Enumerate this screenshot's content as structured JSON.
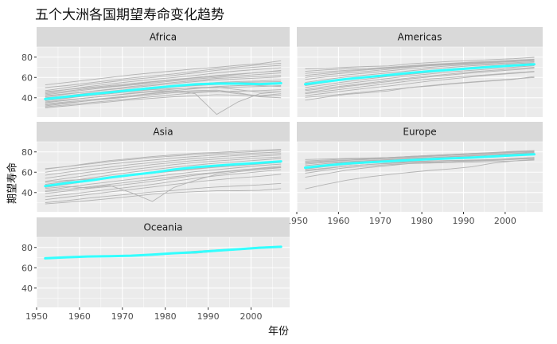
{
  "chart_data": {
    "type": "line",
    "title": "五个大洲各国期望寿命变化趋势",
    "xlabel": "年份",
    "ylabel": "期望寿命",
    "xlim": [
      1950,
      2009
    ],
    "ylim": [
      21,
      90
    ],
    "x_ticks": [
      1950,
      1960,
      1970,
      1980,
      1990,
      2000
    ],
    "y_ticks": [
      40,
      60,
      80
    ],
    "series_color_countries": "#b3b3b3",
    "series_color_trend": "#33ffff",
    "panel_background": "#ebebeb",
    "strip_background": "#d9d9d9",
    "gridline_color": "#ffffff",
    "x": [
      1952,
      1957,
      1962,
      1967,
      1972,
      1977,
      1982,
      1987,
      1992,
      1997,
      2002,
      2007
    ],
    "panels": [
      {
        "continent": "Africa",
        "trend": [
          38.7,
          41.0,
          43.3,
          45.3,
          47.4,
          49.6,
          51.6,
          53.2,
          54.0,
          53.9,
          53.5,
          54.3
        ],
        "country_lines": [
          [
            30.0,
            32.0,
            34.0,
            36.0,
            38.0,
            39.5,
            41.0,
            42.0,
            43.0,
            42.5,
            41.5,
            42.5
          ],
          [
            33.0,
            35.0,
            37.0,
            39.0,
            41.0,
            43.0,
            45.0,
            46.0,
            46.5,
            44.0,
            42.0,
            44.0
          ],
          [
            35.0,
            37.5,
            40.0,
            42.0,
            44.5,
            46.5,
            48.5,
            50.0,
            50.5,
            48.0,
            45.5,
            46.0
          ],
          [
            37.0,
            39.5,
            42.0,
            44.0,
            46.5,
            48.5,
            50.5,
            52.0,
            53.0,
            53.5,
            52.0,
            51.0
          ],
          [
            39.0,
            41.0,
            43.0,
            45.0,
            47.0,
            49.5,
            51.5,
            53.5,
            55.0,
            56.0,
            56.5,
            57.5
          ],
          [
            41.0,
            43.5,
            46.0,
            48.0,
            50.0,
            52.0,
            54.0,
            56.0,
            57.5,
            58.5,
            59.5,
            60.5
          ],
          [
            43.0,
            45.5,
            48.0,
            50.5,
            52.5,
            54.5,
            56.5,
            58.5,
            60.0,
            61.5,
            63.0,
            64.5
          ],
          [
            45.0,
            48.0,
            51.0,
            53.5,
            56.0,
            58.0,
            60.0,
            62.0,
            64.5,
            66.5,
            68.0,
            69.5
          ],
          [
            47.0,
            50.0,
            53.0,
            55.5,
            58.0,
            60.0,
            62.0,
            64.5,
            67.0,
            69.0,
            70.5,
            72.0
          ],
          [
            50.0,
            52.0,
            54.5,
            57.0,
            59.5,
            61.5,
            63.5,
            66.0,
            68.5,
            70.5,
            72.5,
            74.0
          ],
          [
            52.7,
            55.0,
            57.5,
            60.0,
            62.5,
            64.5,
            66.5,
            68.5,
            70.0,
            72.0,
            73.5,
            76.4
          ],
          [
            34.0,
            36.0,
            38.0,
            40.0,
            42.0,
            44.0,
            46.0,
            47.0,
            47.5,
            45.0,
            41.0,
            40.0
          ],
          [
            36.0,
            38.0,
            40.0,
            42.0,
            44.0,
            46.0,
            47.0,
            44.0,
            23.6,
            36.0,
            44.0,
            46.0
          ],
          [
            38.0,
            40.0,
            42.0,
            44.0,
            46.0,
            48.0,
            49.0,
            49.5,
            50.0,
            50.5,
            51.0,
            52.0
          ],
          [
            40.0,
            42.0,
            44.5,
            46.5,
            48.5,
            50.5,
            52.0,
            53.5,
            54.5,
            55.0,
            55.5,
            56.0
          ],
          [
            42.0,
            44.0,
            46.0,
            48.5,
            51.0,
            53.0,
            55.0,
            57.0,
            59.0,
            60.0,
            61.0,
            62.0
          ],
          [
            44.0,
            46.5,
            49.0,
            51.0,
            53.0,
            55.5,
            57.5,
            59.5,
            61.0,
            63.0,
            65.0,
            66.5
          ],
          [
            31.0,
            33.0,
            35.0,
            37.0,
            39.0,
            41.0,
            43.0,
            45.0,
            46.0,
            46.5,
            47.0,
            48.0
          ],
          [
            32.0,
            34.5,
            37.0,
            39.5,
            42.0,
            44.5,
            47.0,
            49.0,
            51.0,
            52.0,
            52.5,
            53.5
          ],
          [
            46.0,
            48.0,
            50.0,
            52.0,
            54.0,
            56.0,
            58.0,
            60.0,
            62.0,
            63.5,
            65.0,
            67.0
          ]
        ]
      },
      {
        "continent": "Americas",
        "trend": [
          53.3,
          56.0,
          58.5,
          60.4,
          62.4,
          64.4,
          66.2,
          67.6,
          69.1,
          70.5,
          71.7,
          73.0
        ],
        "country_lines": [
          [
            37.6,
            40.7,
            43.4,
            45.0,
            46.7,
            49.9,
            51.5,
            53.6,
            55.2,
            56.7,
            58.1,
            60.9
          ],
          [
            40.4,
            42.0,
            44.0,
            46.0,
            48.0,
            50.0,
            52.0,
            54.0,
            55.5,
            57.0,
            58.5,
            60.0
          ],
          [
            42.0,
            44.5,
            47.0,
            49.5,
            51.5,
            54.0,
            56.5,
            58.5,
            60.5,
            62.5,
            64.0,
            65.5
          ],
          [
            45.0,
            48.0,
            51.0,
            53.5,
            56.0,
            58.5,
            60.5,
            62.5,
            64.5,
            66.0,
            67.5,
            69.0
          ],
          [
            48.0,
            51.0,
            54.0,
            56.5,
            59.0,
            61.5,
            63.5,
            65.5,
            67.0,
            68.5,
            70.0,
            71.5
          ],
          [
            50.0,
            53.0,
            56.0,
            58.5,
            61.0,
            63.0,
            65.0,
            67.0,
            69.0,
            70.5,
            72.0,
            73.0
          ],
          [
            52.0,
            55.0,
            58.0,
            60.5,
            62.5,
            64.5,
            66.5,
            68.5,
            70.0,
            71.5,
            72.5,
            73.5
          ],
          [
            55.0,
            58.0,
            60.5,
            62.5,
            64.5,
            66.5,
            68.5,
            70.0,
            71.5,
            72.5,
            73.5,
            74.5
          ],
          [
            58.0,
            60.5,
            62.5,
            64.5,
            66.5,
            68.5,
            70.0,
            71.5,
            72.5,
            73.5,
            74.5,
            75.5
          ],
          [
            60.0,
            62.5,
            64.5,
            66.0,
            68.0,
            70.0,
            71.5,
            72.5,
            73.5,
            74.5,
            75.5,
            76.5
          ],
          [
            62.0,
            64.0,
            66.0,
            67.5,
            69.0,
            70.5,
            72.0,
            73.0,
            74.0,
            75.0,
            76.0,
            77.0
          ],
          [
            64.0,
            65.5,
            67.0,
            68.0,
            69.5,
            71.0,
            72.5,
            73.5,
            74.5,
            75.5,
            76.5,
            77.5
          ],
          [
            66.0,
            67.5,
            68.5,
            69.0,
            70.0,
            71.5,
            73.0,
            74.0,
            75.0,
            76.0,
            77.0,
            78.0
          ],
          [
            68.4,
            69.0,
            70.0,
            70.8,
            71.3,
            73.4,
            74.6,
            75.8,
            76.5,
            77.6,
            78.5,
            79.8
          ],
          [
            47.0,
            49.5,
            52.0,
            54.5,
            57.0,
            59.5,
            61.5,
            63.5,
            65.5,
            67.0,
            68.5,
            70.0
          ],
          [
            44.0,
            46.5,
            49.0,
            51.5,
            54.0,
            56.5,
            58.5,
            60.0,
            61.5,
            63.0,
            64.5,
            66.0
          ]
        ]
      },
      {
        "continent": "Asia",
        "trend": [
          46.3,
          49.3,
          51.6,
          54.7,
          57.3,
          59.6,
          62.6,
          64.9,
          66.5,
          68.0,
          69.2,
          70.7
        ],
        "country_lines": [
          [
            28.8,
            30.3,
            32.0,
            34.0,
            36.1,
            38.4,
            39.9,
            40.8,
            41.7,
            41.8,
            42.1,
            43.8
          ],
          [
            30.0,
            32.0,
            34.5,
            36.5,
            38.5,
            40.5,
            42.0,
            44.0,
            45.5,
            46.5,
            47.5,
            49.0
          ],
          [
            33.0,
            35.5,
            38.0,
            40.5,
            43.0,
            45.5,
            48.0,
            50.5,
            52.5,
            54.5,
            56.0,
            58.0
          ],
          [
            36.0,
            38.0,
            40.5,
            43.0,
            45.5,
            48.0,
            51.0,
            54.0,
            56.5,
            58.5,
            60.5,
            62.5
          ],
          [
            39.0,
            41.5,
            44.0,
            46.0,
            48.5,
            51.0,
            54.0,
            57.0,
            59.5,
            61.5,
            63.5,
            65.0
          ],
          [
            42.0,
            45.0,
            48.0,
            50.5,
            53.0,
            55.5,
            58.0,
            60.5,
            62.5,
            64.5,
            66.5,
            68.0
          ],
          [
            44.0,
            46.0,
            44.5,
            47.0,
            40.0,
            31.2,
            45.0,
            52.0,
            58.0,
            60.5,
            62.5,
            64.5
          ],
          [
            45.0,
            48.0,
            51.0,
            54.0,
            56.5,
            59.0,
            61.5,
            63.5,
            65.5,
            67.5,
            69.5,
            71.0
          ],
          [
            48.0,
            51.0,
            54.0,
            57.0,
            60.0,
            62.5,
            65.0,
            67.0,
            69.0,
            70.5,
            72.0,
            73.5
          ],
          [
            51.0,
            54.0,
            57.0,
            60.0,
            62.5,
            65.0,
            67.5,
            69.5,
            71.0,
            72.5,
            74.0,
            75.0
          ],
          [
            54.0,
            57.0,
            60.0,
            62.5,
            65.0,
            67.5,
            69.5,
            71.5,
            73.0,
            74.5,
            76.0,
            77.0
          ],
          [
            57.0,
            60.0,
            62.5,
            65.0,
            67.5,
            69.5,
            71.5,
            73.5,
            75.0,
            76.5,
            77.5,
            78.5
          ],
          [
            60.0,
            63.0,
            65.5,
            68.0,
            70.0,
            72.0,
            74.0,
            75.5,
            77.0,
            78.0,
            79.0,
            80.0
          ],
          [
            63.0,
            65.5,
            68.0,
            70.5,
            72.5,
            74.5,
            76.0,
            77.5,
            78.5,
            79.5,
            80.5,
            81.5
          ],
          [
            63.5,
            65.5,
            68.7,
            71.4,
            73.4,
            75.4,
            77.1,
            78.7,
            79.4,
            80.7,
            81.6,
            82.6
          ],
          [
            41.0,
            43.0,
            45.5,
            48.0,
            50.5,
            53.0,
            55.5,
            58.0,
            60.0,
            62.0,
            64.0,
            66.0
          ],
          [
            50.0,
            52.0,
            53.0,
            55.0,
            57.0,
            59.0,
            61.0,
            63.0,
            65.0,
            66.5,
            68.0,
            69.5
          ]
        ]
      },
      {
        "continent": "Europe",
        "trend": [
          64.4,
          66.7,
          68.5,
          69.7,
          70.8,
          71.9,
          72.8,
          73.6,
          74.4,
          75.5,
          76.7,
          77.6
        ],
        "country_lines": [
          [
            43.6,
            48.1,
            52.1,
            55.3,
            57.6,
            59.8,
            61.8,
            63.3,
            65.4,
            68.9,
            71.0,
            72.7
          ],
          [
            55.0,
            58.5,
            62.0,
            64.5,
            66.5,
            68.5,
            69.5,
            70.5,
            71.0,
            72.0,
            73.5,
            74.5
          ],
          [
            59.0,
            62.0,
            64.5,
            66.0,
            67.5,
            68.5,
            69.0,
            69.5,
            70.0,
            70.5,
            71.0,
            72.0
          ],
          [
            61.0,
            63.5,
            66.0,
            67.5,
            69.0,
            70.0,
            71.0,
            71.5,
            72.0,
            72.5,
            73.0,
            74.0
          ],
          [
            63.0,
            65.5,
            67.5,
            69.0,
            70.5,
            71.5,
            72.5,
            73.5,
            74.5,
            75.5,
            76.5,
            77.5
          ],
          [
            65.0,
            67.0,
            69.0,
            70.0,
            71.0,
            72.0,
            73.0,
            74.0,
            75.0,
            76.0,
            77.0,
            78.0
          ],
          [
            66.5,
            68.5,
            70.0,
            71.0,
            72.0,
            73.0,
            74.0,
            75.0,
            76.0,
            77.0,
            78.0,
            79.0
          ],
          [
            68.0,
            69.5,
            70.5,
            71.5,
            72.5,
            73.5,
            74.5,
            75.5,
            76.5,
            77.5,
            78.5,
            79.5
          ],
          [
            69.0,
            70.5,
            71.5,
            72.5,
            73.5,
            74.5,
            75.5,
            76.5,
            77.5,
            78.5,
            79.5,
            80.0
          ],
          [
            70.0,
            71.0,
            72.0,
            73.0,
            74.0,
            75.0,
            76.0,
            77.0,
            78.0,
            79.0,
            80.0,
            80.5
          ],
          [
            71.0,
            72.0,
            73.0,
            73.5,
            74.5,
            75.5,
            76.5,
            77.5,
            78.5,
            79.0,
            80.0,
            81.0
          ],
          [
            72.5,
            73.0,
            73.5,
            74.0,
            74.5,
            75.5,
            76.5,
            77.5,
            78.5,
            79.5,
            80.5,
            81.3
          ],
          [
            62.0,
            64.0,
            66.0,
            67.5,
            68.5,
            69.5,
            70.0,
            70.5,
            71.5,
            72.5,
            73.5,
            74.5
          ],
          [
            64.0,
            66.0,
            68.0,
            69.0,
            70.0,
            70.5,
            71.0,
            71.5,
            71.0,
            71.5,
            72.5,
            73.5
          ]
        ]
      },
      {
        "continent": "Oceania",
        "trend": [
          69.3,
          70.3,
          71.1,
          71.3,
          71.9,
          72.9,
          74.3,
          75.3,
          76.9,
          78.2,
          79.7,
          80.7
        ],
        "country_lines": [
          [
            69.1,
            70.3,
            70.9,
            71.1,
            71.9,
            73.5,
            74.7,
            76.3,
            77.6,
            78.8,
            80.4,
            81.2
          ],
          [
            69.4,
            70.3,
            71.2,
            71.5,
            71.9,
            72.2,
            73.8,
            74.3,
            76.3,
            77.6,
            79.1,
            80.2
          ]
        ]
      }
    ]
  }
}
